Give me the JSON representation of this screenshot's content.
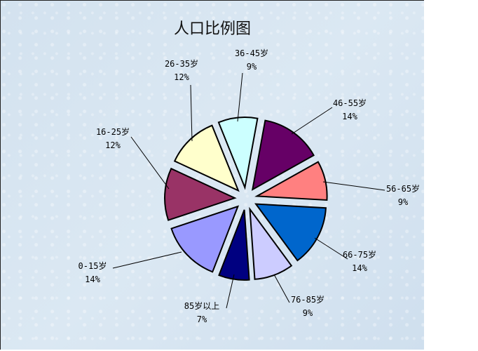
{
  "chart_data": {
    "type": "pie",
    "title": "人口比例图",
    "exploded": true,
    "start_angle_deg": -22,
    "direction": "clockwise",
    "slices": [
      {
        "label": "36-45岁",
        "value": 9,
        "pct": "9%",
        "color": "#CCFFFF"
      },
      {
        "label": "46-55岁",
        "value": 14,
        "pct": "14%",
        "color": "#660066"
      },
      {
        "label": "56-65岁",
        "value": 9,
        "pct": "9%",
        "color": "#FF8080"
      },
      {
        "label": "66-75岁",
        "value": 14,
        "pct": "14%",
        "color": "#0066CC"
      },
      {
        "label": "76-85岁",
        "value": 9,
        "pct": "9%",
        "color": "#CCCCFF"
      },
      {
        "label": "85岁以上",
        "value": 7,
        "pct": "7%",
        "color": "#000080"
      },
      {
        "label": "0-15岁",
        "value": 14,
        "pct": "14%",
        "color": "#9999FF"
      },
      {
        "label": "16-25岁",
        "value": 12,
        "pct": "12%",
        "color": "#993366"
      },
      {
        "label": "26-35岁",
        "value": 12,
        "pct": "12%",
        "color": "#FFFFCC"
      }
    ]
  }
}
